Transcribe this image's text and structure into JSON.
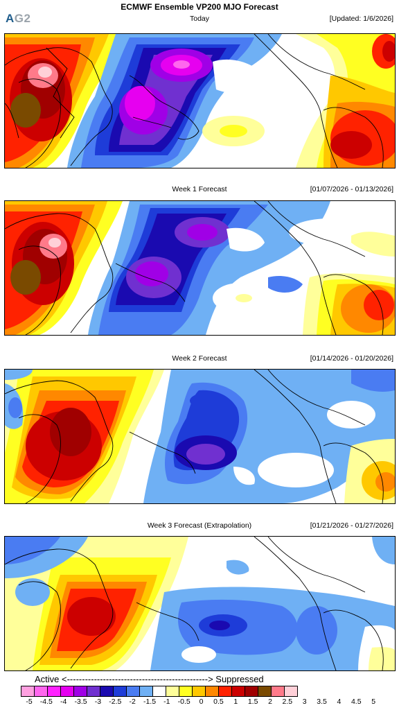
{
  "logo": {
    "a": "A",
    "g": "G2"
  },
  "title": "ECMWF Ensemble VP200 MJO Forecast",
  "panels": [
    {
      "label": "Today",
      "right": "[Updated: 1/6/2026]"
    },
    {
      "label": "Week 1 Forecast",
      "right": "[01/07/2026 - 01/13/2026]"
    },
    {
      "label": "Week 2 Forecast",
      "right": "[01/14/2026 - 01/20/2026]"
    },
    {
      "label": "Week 3 Forecast (Extrapolation)",
      "right": "[01/21/2026 - 01/27/2026]"
    }
  ],
  "scale": {
    "active_label": "Active <-----------------------------------------------> Suppressed",
    "ticks": [
      "-5",
      "-4.5",
      "-4",
      "-3.5",
      "-3",
      "-2.5",
      "-2",
      "-1.5",
      "-1",
      "-0.5",
      "0",
      "0.5",
      "1",
      "1.5",
      "2",
      "2.5",
      "3",
      "3.5",
      "4",
      "4.5",
      "5"
    ],
    "colors": [
      "#ffa0e0",
      "#ff66ee",
      "#ff22ff",
      "#e600f0",
      "#a000e6",
      "#7030d0",
      "#1a0ab0",
      "#1e3cd8",
      "#4a7cf2",
      "#6fb0f4",
      "#ffffff",
      "#ffff9a",
      "#ffff22",
      "#ffc800",
      "#ff8800",
      "#ff2200",
      "#cc0000",
      "#a00000",
      "#7a4a00",
      "#ff7a8a",
      "#ffd0d8"
    ]
  },
  "anomaly_colors": {
    "neg5": "#ff66ee",
    "neg4": "#e600f0",
    "neg3": "#a000e6",
    "neg2": "#1a0ab0",
    "neg15": "#1e3cd8",
    "neg1": "#4a7cf2",
    "neg05": "#6fb0f4",
    "pos05": "#ffff9a",
    "pos1": "#ffff22",
    "pos15": "#ffc800",
    "pos2": "#ff8800",
    "pos25": "#ff2200",
    "pos3": "#cc0000",
    "pos35": "#a00000",
    "pos4": "#7a4a00",
    "pos45": "#ffb0bc"
  }
}
